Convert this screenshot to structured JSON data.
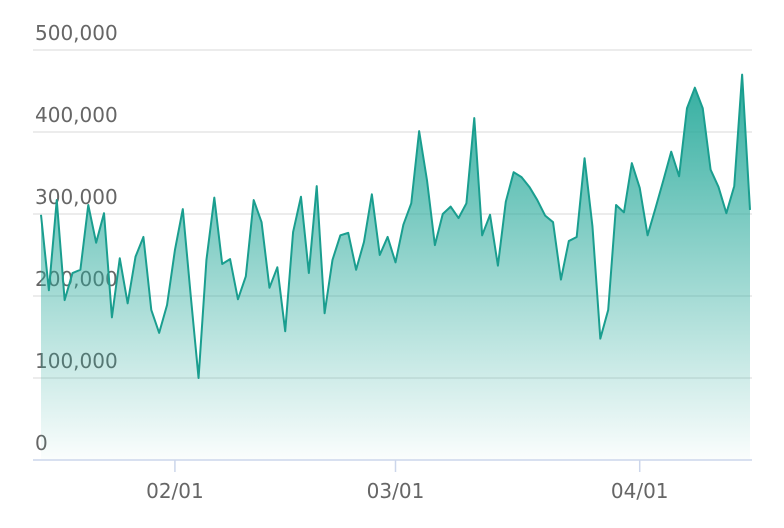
{
  "chart_data": {
    "type": "area",
    "x": [
      "01/15",
      "01/16",
      "01/17",
      "01/18",
      "01/19",
      "01/20",
      "01/21",
      "01/22",
      "01/23",
      "01/24",
      "01/25",
      "01/26",
      "01/27",
      "01/28",
      "01/29",
      "01/30",
      "01/31",
      "02/01",
      "02/02",
      "02/03",
      "02/04",
      "02/05",
      "02/06",
      "02/07",
      "02/08",
      "02/09",
      "02/10",
      "02/11",
      "02/12",
      "02/13",
      "02/14",
      "02/15",
      "02/16",
      "02/17",
      "02/18",
      "02/19",
      "02/20",
      "02/21",
      "02/22",
      "02/23",
      "02/24",
      "02/25",
      "02/26",
      "02/27",
      "02/28",
      "03/01",
      "03/02",
      "03/03",
      "03/04",
      "03/05",
      "03/06",
      "03/07",
      "03/08",
      "03/09",
      "03/10",
      "03/11",
      "03/12",
      "03/13",
      "03/14",
      "03/15",
      "03/16",
      "03/17",
      "03/18",
      "03/19",
      "03/20",
      "03/21",
      "03/22",
      "03/23",
      "03/24",
      "03/25",
      "03/26",
      "03/27",
      "03/28",
      "03/29",
      "03/30",
      "03/31",
      "04/01",
      "04/02",
      "04/03",
      "04/04",
      "04/05",
      "04/06",
      "04/07",
      "04/08",
      "04/09",
      "04/10",
      "04/11",
      "04/12",
      "04/13",
      "04/14",
      "04/15"
    ],
    "values": [
      299000,
      207000,
      317000,
      195000,
      228000,
      232000,
      311000,
      265000,
      301000,
      174000,
      246000,
      191000,
      248000,
      272000,
      183000,
      155000,
      189000,
      256000,
      306000,
      201000,
      100000,
      244000,
      320000,
      239000,
      245000,
      196000,
      224000,
      317000,
      290000,
      210000,
      235000,
      157000,
      278000,
      321000,
      228000,
      334000,
      179000,
      244000,
      274000,
      277000,
      232000,
      266000,
      324000,
      250000,
      272000,
      241000,
      287000,
      313000,
      401000,
      341000,
      262000,
      300000,
      309000,
      295000,
      313000,
      417000,
      274000,
      299000,
      237000,
      315000,
      351000,
      345000,
      333000,
      317000,
      298000,
      290000,
      220000,
      267000,
      272000,
      368000,
      285000,
      148000,
      183000,
      311000,
      302000,
      362000,
      332000,
      274000,
      307000,
      341000,
      376000,
      346000,
      429000,
      454000,
      429000,
      354000,
      333000,
      301000,
      334000,
      470000,
      305000
    ],
    "color": "#1a9e8f",
    "ylim": [
      0,
      500000
    ],
    "yticks": [
      0,
      {
        "value": 100000,
        "label": "100,000"
      },
      {
        "value": 200000,
        "label": "200,000"
      },
      {
        "value": 300000,
        "label": "300,000"
      },
      {
        "value": 400000,
        "label": "400,000"
      },
      {
        "value": 500000,
        "label": "500,000"
      }
    ],
    "xticks": [
      "02/01",
      "03/01",
      "04/01"
    ],
    "grid": true
  }
}
